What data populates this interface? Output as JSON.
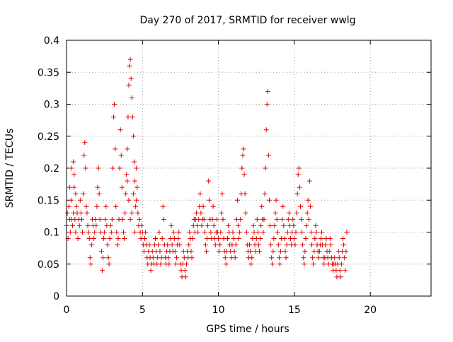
{
  "chart_data": {
    "type": "scatter",
    "title": "Day 270 of 2017, SRMTID for receiver wwlg",
    "xlabel": "GPS time / hours",
    "ylabel": "SRMTID / TECUs",
    "xlim": [
      0,
      24
    ],
    "ylim": [
      0,
      0.4
    ],
    "x_ticks": [
      0,
      5,
      10,
      15,
      20
    ],
    "x_tick_labels": [
      "0",
      "5",
      "10",
      "15",
      "20"
    ],
    "y_ticks": [
      0,
      0.05,
      0.1,
      0.15,
      0.2,
      0.25,
      0.3,
      0.35,
      0.4
    ],
    "y_tick_labels": [
      "0",
      "0.05",
      "0.1",
      "0.15",
      "0.2",
      "0.25",
      "0.3",
      "0.35",
      "0.4"
    ],
    "grid": true,
    "marker": "plus",
    "color": "#e00000",
    "points": [
      [
        0.0,
        0.11
      ],
      [
        0.05,
        0.13
      ],
      [
        0.1,
        0.09
      ],
      [
        0.15,
        0.14
      ],
      [
        0.2,
        0.12
      ],
      [
        0.25,
        0.1
      ],
      [
        0.3,
        0.15
      ],
      [
        0.35,
        0.12
      ],
      [
        0.4,
        0.11
      ],
      [
        0.45,
        0.13
      ],
      [
        0.5,
        0.19
      ],
      [
        0.55,
        0.12
      ],
      [
        0.6,
        0.1
      ],
      [
        0.65,
        0.14
      ],
      [
        0.7,
        0.13
      ],
      [
        0.75,
        0.09
      ],
      [
        0.8,
        0.12
      ],
      [
        0.85,
        0.11
      ],
      [
        0.9,
        0.15
      ],
      [
        0.95,
        0.13
      ],
      [
        0.3,
        0.2
      ],
      [
        0.45,
        0.21
      ],
      [
        0.5,
        0.17
      ],
      [
        0.6,
        0.16
      ],
      [
        0.2,
        0.17
      ],
      [
        1.0,
        0.12
      ],
      [
        1.05,
        0.1
      ],
      [
        1.1,
        0.16
      ],
      [
        1.15,
        0.22
      ],
      [
        1.2,
        0.24
      ],
      [
        1.25,
        0.2
      ],
      [
        1.3,
        0.14
      ],
      [
        1.35,
        0.13
      ],
      [
        1.4,
        0.11
      ],
      [
        1.45,
        0.1
      ],
      [
        1.5,
        0.09
      ],
      [
        1.55,
        0.06
      ],
      [
        1.6,
        0.05
      ],
      [
        1.65,
        0.08
      ],
      [
        1.7,
        0.12
      ],
      [
        1.75,
        0.11
      ],
      [
        1.8,
        0.09
      ],
      [
        1.85,
        0.1
      ],
      [
        1.9,
        0.12
      ],
      [
        1.95,
        0.11
      ],
      [
        2.0,
        0.14
      ],
      [
        2.05,
        0.17
      ],
      [
        2.1,
        0.2
      ],
      [
        2.15,
        0.16
      ],
      [
        2.2,
        0.12
      ],
      [
        2.25,
        0.1
      ],
      [
        2.3,
        0.07
      ],
      [
        2.35,
        0.04
      ],
      [
        2.4,
        0.06
      ],
      [
        2.45,
        0.09
      ],
      [
        2.5,
        0.1
      ],
      [
        2.55,
        0.12
      ],
      [
        2.6,
        0.14
      ],
      [
        2.65,
        0.11
      ],
      [
        2.7,
        0.08
      ],
      [
        2.75,
        0.06
      ],
      [
        2.8,
        0.05
      ],
      [
        2.85,
        0.09
      ],
      [
        2.9,
        0.11
      ],
      [
        2.95,
        0.1
      ],
      [
        3.0,
        0.12
      ],
      [
        3.05,
        0.2
      ],
      [
        3.1,
        0.28
      ],
      [
        3.15,
        0.3
      ],
      [
        3.2,
        0.23
      ],
      [
        3.25,
        0.14
      ],
      [
        3.3,
        0.1
      ],
      [
        3.35,
        0.08
      ],
      [
        3.4,
        0.09
      ],
      [
        3.45,
        0.12
      ],
      [
        3.5,
        0.2
      ],
      [
        3.55,
        0.26
      ],
      [
        3.6,
        0.22
      ],
      [
        3.65,
        0.17
      ],
      [
        3.7,
        0.12
      ],
      [
        3.75,
        0.1
      ],
      [
        3.8,
        0.09
      ],
      [
        3.85,
        0.13
      ],
      [
        3.9,
        0.16
      ],
      [
        3.95,
        0.19
      ],
      [
        4.0,
        0.23
      ],
      [
        4.05,
        0.28
      ],
      [
        4.1,
        0.33
      ],
      [
        4.15,
        0.36
      ],
      [
        4.2,
        0.37
      ],
      [
        4.25,
        0.34
      ],
      [
        4.3,
        0.31
      ],
      [
        4.35,
        0.28
      ],
      [
        4.4,
        0.25
      ],
      [
        4.45,
        0.21
      ],
      [
        4.5,
        0.18
      ],
      [
        4.55,
        0.14
      ],
      [
        4.6,
        0.2
      ],
      [
        4.65,
        0.17
      ],
      [
        4.7,
        0.13
      ],
      [
        4.75,
        0.11
      ],
      [
        4.8,
        0.12
      ],
      [
        4.85,
        0.1
      ],
      [
        4.9,
        0.09
      ],
      [
        4.95,
        0.11
      ],
      [
        4.0,
        0.18
      ],
      [
        4.1,
        0.15
      ],
      [
        4.3,
        0.13
      ],
      [
        4.4,
        0.16
      ],
      [
        4.6,
        0.15
      ],
      [
        4.2,
        0.12
      ],
      [
        4.5,
        0.1
      ],
      [
        5.0,
        0.1
      ],
      [
        5.05,
        0.08
      ],
      [
        5.1,
        0.07
      ],
      [
        5.15,
        0.09
      ],
      [
        5.2,
        0.1
      ],
      [
        5.25,
        0.08
      ],
      [
        5.3,
        0.06
      ],
      [
        5.35,
        0.05
      ],
      [
        5.4,
        0.07
      ],
      [
        5.45,
        0.08
      ],
      [
        5.5,
        0.06
      ],
      [
        5.55,
        0.04
      ],
      [
        5.6,
        0.05
      ],
      [
        5.65,
        0.07
      ],
      [
        5.7,
        0.06
      ],
      [
        5.75,
        0.05
      ],
      [
        5.8,
        0.08
      ],
      [
        5.85,
        0.09
      ],
      [
        5.9,
        0.07
      ],
      [
        5.95,
        0.05
      ],
      [
        6.0,
        0.06
      ],
      [
        6.05,
        0.08
      ],
      [
        6.1,
        0.1
      ],
      [
        6.15,
        0.07
      ],
      [
        6.2,
        0.05
      ],
      [
        6.25,
        0.06
      ],
      [
        6.3,
        0.09
      ],
      [
        6.35,
        0.14
      ],
      [
        6.4,
        0.12
      ],
      [
        6.45,
        0.08
      ],
      [
        6.5,
        0.06
      ],
      [
        6.55,
        0.05
      ],
      [
        6.6,
        0.07
      ],
      [
        6.65,
        0.08
      ],
      [
        6.7,
        0.06
      ],
      [
        6.75,
        0.05
      ],
      [
        6.8,
        0.07
      ],
      [
        6.85,
        0.09
      ],
      [
        6.9,
        0.11
      ],
      [
        6.95,
        0.08
      ],
      [
        7.0,
        0.07
      ],
      [
        7.05,
        0.1
      ],
      [
        7.1,
        0.09
      ],
      [
        7.15,
        0.07
      ],
      [
        7.2,
        0.05
      ],
      [
        7.25,
        0.06
      ],
      [
        7.3,
        0.08
      ],
      [
        7.35,
        0.09
      ],
      [
        7.4,
        0.1
      ],
      [
        7.45,
        0.08
      ],
      [
        7.5,
        0.05
      ],
      [
        7.55,
        0.04
      ],
      [
        7.6,
        0.03
      ],
      [
        7.65,
        0.05
      ],
      [
        7.7,
        0.07
      ],
      [
        7.75,
        0.06
      ],
      [
        7.8,
        0.04
      ],
      [
        7.85,
        0.03
      ],
      [
        7.9,
        0.05
      ],
      [
        7.95,
        0.07
      ],
      [
        8.0,
        0.06
      ],
      [
        8.05,
        0.08
      ],
      [
        8.1,
        0.1
      ],
      [
        8.15,
        0.09
      ],
      [
        8.2,
        0.07
      ],
      [
        8.25,
        0.06
      ],
      [
        8.3,
        0.09
      ],
      [
        8.35,
        0.11
      ],
      [
        8.4,
        0.12
      ],
      [
        8.45,
        0.1
      ],
      [
        8.5,
        0.12
      ],
      [
        8.55,
        0.13
      ],
      [
        8.6,
        0.11
      ],
      [
        8.65,
        0.1
      ],
      [
        8.7,
        0.12
      ],
      [
        8.75,
        0.14
      ],
      [
        8.8,
        0.16
      ],
      [
        8.85,
        0.13
      ],
      [
        8.9,
        0.11
      ],
      [
        8.95,
        0.12
      ],
      [
        9.0,
        0.14
      ],
      [
        9.05,
        0.12
      ],
      [
        9.1,
        0.1
      ],
      [
        9.15,
        0.08
      ],
      [
        9.2,
        0.07
      ],
      [
        9.25,
        0.09
      ],
      [
        9.3,
        0.11
      ],
      [
        9.35,
        0.18
      ],
      [
        9.4,
        0.15
      ],
      [
        9.45,
        0.12
      ],
      [
        9.5,
        0.1
      ],
      [
        9.55,
        0.09
      ],
      [
        9.6,
        0.12
      ],
      [
        9.65,
        0.14
      ],
      [
        9.7,
        0.11
      ],
      [
        9.75,
        0.09
      ],
      [
        9.8,
        0.08
      ],
      [
        9.85,
        0.1
      ],
      [
        9.9,
        0.12
      ],
      [
        9.95,
        0.1
      ],
      [
        10.0,
        0.09
      ],
      [
        10.05,
        0.07
      ],
      [
        10.1,
        0.08
      ],
      [
        10.15,
        0.1
      ],
      [
        10.2,
        0.13
      ],
      [
        10.25,
        0.16
      ],
      [
        10.3,
        0.12
      ],
      [
        10.35,
        0.09
      ],
      [
        10.4,
        0.07
      ],
      [
        10.45,
        0.06
      ],
      [
        10.5,
        0.05
      ],
      [
        10.55,
        0.07
      ],
      [
        10.6,
        0.09
      ],
      [
        10.65,
        0.11
      ],
      [
        10.7,
        0.1
      ],
      [
        10.75,
        0.08
      ],
      [
        10.8,
        0.07
      ],
      [
        10.85,
        0.06
      ],
      [
        10.9,
        0.08
      ],
      [
        10.95,
        0.1
      ],
      [
        11.0,
        0.09
      ],
      [
        11.05,
        0.07
      ],
      [
        11.1,
        0.06
      ],
      [
        11.15,
        0.08
      ],
      [
        11.2,
        0.12
      ],
      [
        11.25,
        0.15
      ],
      [
        11.3,
        0.11
      ],
      [
        11.35,
        0.09
      ],
      [
        11.4,
        0.1
      ],
      [
        11.45,
        0.12
      ],
      [
        11.5,
        0.16
      ],
      [
        11.55,
        0.2
      ],
      [
        11.6,
        0.22
      ],
      [
        11.65,
        0.23
      ],
      [
        11.7,
        0.19
      ],
      [
        11.75,
        0.16
      ],
      [
        11.8,
        0.13
      ],
      [
        11.85,
        0.1
      ],
      [
        11.9,
        0.08
      ],
      [
        11.95,
        0.07
      ],
      [
        12.0,
        0.06
      ],
      [
        12.05,
        0.08
      ],
      [
        12.1,
        0.07
      ],
      [
        12.15,
        0.05
      ],
      [
        12.2,
        0.06
      ],
      [
        12.25,
        0.09
      ],
      [
        12.3,
        0.11
      ],
      [
        12.35,
        0.1
      ],
      [
        12.4,
        0.08
      ],
      [
        12.45,
        0.07
      ],
      [
        12.5,
        0.09
      ],
      [
        12.55,
        0.12
      ],
      [
        12.6,
        0.1
      ],
      [
        12.65,
        0.08
      ],
      [
        12.7,
        0.07
      ],
      [
        12.75,
        0.09
      ],
      [
        12.8,
        0.11
      ],
      [
        12.85,
        0.14
      ],
      [
        12.9,
        0.12
      ],
      [
        12.95,
        0.1
      ],
      [
        13.0,
        0.12
      ],
      [
        13.05,
        0.16
      ],
      [
        13.1,
        0.2
      ],
      [
        13.15,
        0.26
      ],
      [
        13.2,
        0.3
      ],
      [
        13.25,
        0.32
      ],
      [
        13.3,
        0.22
      ],
      [
        13.35,
        0.15
      ],
      [
        13.4,
        0.11
      ],
      [
        13.45,
        0.08
      ],
      [
        13.5,
        0.06
      ],
      [
        13.55,
        0.05
      ],
      [
        13.6,
        0.07
      ],
      [
        13.65,
        0.09
      ],
      [
        13.7,
        0.11
      ],
      [
        13.75,
        0.13
      ],
      [
        13.8,
        0.15
      ],
      [
        13.85,
        0.12
      ],
      [
        13.9,
        0.1
      ],
      [
        13.95,
        0.08
      ],
      [
        14.0,
        0.06
      ],
      [
        14.05,
        0.05
      ],
      [
        14.1,
        0.07
      ],
      [
        14.15,
        0.09
      ],
      [
        14.2,
        0.12
      ],
      [
        14.25,
        0.14
      ],
      [
        14.3,
        0.11
      ],
      [
        14.35,
        0.09
      ],
      [
        14.4,
        0.07
      ],
      [
        14.45,
        0.06
      ],
      [
        14.5,
        0.08
      ],
      [
        14.55,
        0.1
      ],
      [
        14.6,
        0.12
      ],
      [
        14.65,
        0.13
      ],
      [
        14.7,
        0.11
      ],
      [
        14.75,
        0.09
      ],
      [
        14.8,
        0.08
      ],
      [
        14.85,
        0.1
      ],
      [
        14.9,
        0.12
      ],
      [
        14.95,
        0.11
      ],
      [
        15.0,
        0.09
      ],
      [
        15.05,
        0.08
      ],
      [
        15.1,
        0.1
      ],
      [
        15.15,
        0.13
      ],
      [
        15.2,
        0.16
      ],
      [
        15.25,
        0.19
      ],
      [
        15.3,
        0.2
      ],
      [
        15.35,
        0.17
      ],
      [
        15.4,
        0.14
      ],
      [
        15.45,
        0.12
      ],
      [
        15.5,
        0.1
      ],
      [
        15.55,
        0.08
      ],
      [
        15.6,
        0.06
      ],
      [
        15.65,
        0.05
      ],
      [
        15.7,
        0.07
      ],
      [
        15.75,
        0.09
      ],
      [
        15.8,
        0.11
      ],
      [
        15.85,
        0.13
      ],
      [
        15.9,
        0.15
      ],
      [
        15.95,
        0.12
      ],
      [
        16.0,
        0.18
      ],
      [
        16.05,
        0.14
      ],
      [
        16.1,
        0.1
      ],
      [
        16.15,
        0.08
      ],
      [
        16.2,
        0.06
      ],
      [
        16.25,
        0.05
      ],
      [
        16.3,
        0.07
      ],
      [
        16.35,
        0.09
      ],
      [
        16.4,
        0.11
      ],
      [
        16.45,
        0.1
      ],
      [
        16.5,
        0.08
      ],
      [
        16.55,
        0.07
      ],
      [
        16.6,
        0.06
      ],
      [
        16.65,
        0.07
      ],
      [
        16.7,
        0.08
      ],
      [
        16.75,
        0.09
      ],
      [
        16.8,
        0.1
      ],
      [
        16.85,
        0.08
      ],
      [
        16.9,
        0.06
      ],
      [
        16.95,
        0.05
      ],
      [
        17.0,
        0.06
      ],
      [
        17.05,
        0.08
      ],
      [
        17.1,
        0.09
      ],
      [
        17.15,
        0.07
      ],
      [
        17.2,
        0.06
      ],
      [
        17.25,
        0.05
      ],
      [
        17.3,
        0.07
      ],
      [
        17.35,
        0.09
      ],
      [
        17.4,
        0.08
      ],
      [
        17.45,
        0.06
      ],
      [
        17.5,
        0.05
      ],
      [
        17.55,
        0.04
      ],
      [
        17.6,
        0.05
      ],
      [
        17.65,
        0.06
      ],
      [
        17.7,
        0.05
      ],
      [
        17.75,
        0.04
      ],
      [
        17.8,
        0.03
      ],
      [
        17.85,
        0.05
      ],
      [
        17.9,
        0.07
      ],
      [
        17.95,
        0.06
      ],
      [
        18.0,
        0.04
      ],
      [
        18.05,
        0.03
      ],
      [
        18.1,
        0.05
      ],
      [
        18.15,
        0.07
      ],
      [
        18.2,
        0.09
      ],
      [
        18.25,
        0.08
      ],
      [
        18.3,
        0.06
      ],
      [
        18.35,
        0.04
      ],
      [
        18.4,
        0.07
      ],
      [
        18.45,
        0.1
      ]
    ]
  }
}
